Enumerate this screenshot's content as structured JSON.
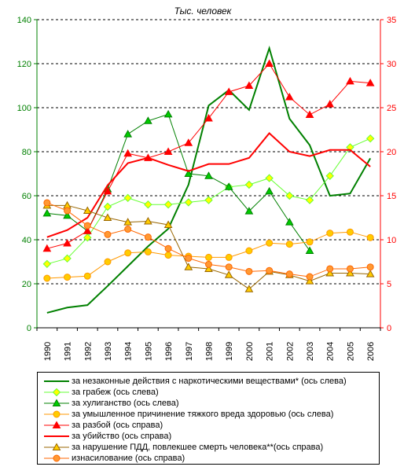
{
  "chart_data": {
    "type": "line",
    "title": "Тыс. человек",
    "categories": [
      "1990",
      "1991",
      "1992",
      "1993",
      "1994",
      "1995",
      "1996",
      "1997",
      "1998",
      "1999",
      "2000",
      "2001",
      "2002",
      "2003",
      "2004",
      "2005",
      "2006"
    ],
    "y_left": {
      "min": 0,
      "max": 140,
      "ticks": [
        "0",
        "20",
        "40",
        "60",
        "80",
        "100",
        "120",
        "140"
      ],
      "color": "#008000"
    },
    "y_right": {
      "min": 0,
      "max": 35,
      "ticks": [
        "0",
        "5",
        "10",
        "15",
        "20",
        "25",
        "30",
        "35"
      ],
      "color": "#ff0000"
    },
    "grid": "horizontal-dashed",
    "legend_position": "bottom",
    "series": [
      {
        "name": "за незаконные действия с наркотическими веществами* (ось слева)",
        "axis": "left",
        "color": "#008000",
        "marker": "none",
        "width": 2,
        "values": [
          6.8,
          9.2,
          10.3,
          19,
          28,
          37,
          45,
          65,
          101,
          108,
          99,
          127,
          95,
          83,
          60,
          61,
          77
        ]
      },
      {
        "name": "за грабеж (ось слева)",
        "axis": "left",
        "color": "#66ff33",
        "marker": "diamond",
        "fill": "#ffff00",
        "width": 1,
        "values": [
          29,
          31.5,
          41,
          55,
          59,
          56,
          56,
          57,
          58,
          64,
          65,
          68,
          60,
          58,
          69,
          82,
          86
        ]
      },
      {
        "name": "за хулиганство (ось слева)",
        "axis": "left",
        "color": "#008000",
        "marker": "triangle",
        "fill": "#00cc00",
        "width": 1,
        "values": [
          52,
          51,
          44,
          63,
          88,
          94,
          97,
          70,
          69,
          64,
          53,
          62,
          48,
          35,
          null,
          null,
          null
        ]
      },
      {
        "name": "за умышленное причинение тяжкого вреда здоровью (ось слева)",
        "axis": "left",
        "color": "#ff9900",
        "marker": "circle",
        "fill": "#ffcc00",
        "width": 1,
        "values": [
          22.5,
          23,
          23.5,
          30,
          34,
          34.5,
          33,
          32.5,
          32,
          32,
          35,
          38.5,
          38,
          39,
          43,
          43.5,
          41
        ]
      },
      {
        "name": "за разбой (ось справа)",
        "axis": "right",
        "color": "#ff0000",
        "marker": "triangle",
        "fill": "#ff0000",
        "width": 1,
        "values": [
          9,
          9.6,
          11,
          15.5,
          19.8,
          19.3,
          20,
          21,
          23.8,
          26.8,
          27.5,
          30,
          26.2,
          24.2,
          25.4,
          28,
          27.8
        ]
      },
      {
        "name": "за убийство (ось справа)",
        "axis": "right",
        "color": "#ff0000",
        "marker": "none",
        "width": 2,
        "values": [
          10.3,
          11.1,
          12.5,
          16.2,
          18.7,
          19.3,
          18.5,
          17.8,
          18.6,
          18.6,
          19.3,
          22.1,
          20,
          19.5,
          20.2,
          20.2,
          18.3
        ]
      },
      {
        "name": "за нарушение ПДД, повлекшее смерть человека**(ось справа)",
        "axis": "right",
        "color": "#996600",
        "marker": "triangle",
        "fill": "#ffcc00",
        "width": 1,
        "values": [
          13.9,
          13.9,
          13.3,
          12.5,
          12,
          12.1,
          11.7,
          6.9,
          6.7,
          6,
          4.4,
          6.4,
          6,
          5.3,
          6.2,
          6.2,
          6.1
        ]
      },
      {
        "name": "изнасилование (ось справа)",
        "axis": "right",
        "color": "#ff6600",
        "marker": "circle",
        "fill": "#ff9933",
        "width": 1,
        "values": [
          14.2,
          13.3,
          11.6,
          10.6,
          11.2,
          10.3,
          9,
          7.9,
          7.2,
          6.9,
          6.4,
          6.5,
          6.1,
          5.8,
          6.7,
          6.7,
          6.9
        ]
      }
    ]
  }
}
